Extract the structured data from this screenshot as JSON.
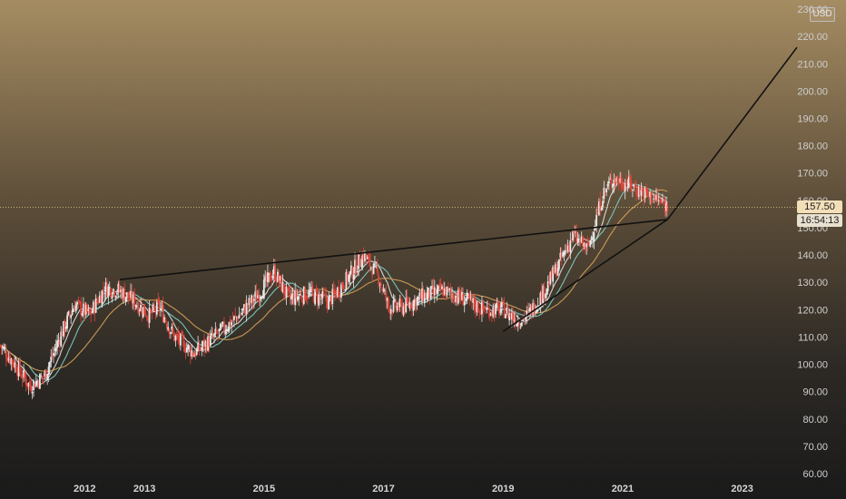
{
  "chart_data": {
    "type": "candlestick",
    "currency": "USD",
    "last_price": "157.50",
    "countdown": "16:54:13",
    "y_axis": {
      "ticks": [
        "60.00",
        "70.00",
        "80.00",
        "90.00",
        "100.00",
        "110.00",
        "120.00",
        "130.00",
        "140.00",
        "150.00",
        "160.00",
        "170.00",
        "180.00",
        "190.00",
        "200.00",
        "210.00",
        "220.00",
        "230.00"
      ],
      "range": [
        60,
        232
      ]
    },
    "x_axis": {
      "ticks": [
        "2012",
        "2013",
        "2015",
        "2017",
        "2019",
        "2021",
        "2023"
      ],
      "range": [
        "2010-08",
        "2023-12"
      ]
    },
    "price_path": [
      [
        "2010-08",
        107
      ],
      [
        "2010-11",
        100
      ],
      [
        "2011-02",
        92
      ],
      [
        "2011-05",
        96
      ],
      [
        "2011-08",
        110
      ],
      [
        "2011-11",
        122
      ],
      [
        "2012-02",
        118
      ],
      [
        "2012-05",
        128
      ],
      [
        "2012-08",
        127
      ],
      [
        "2012-11",
        123
      ],
      [
        "2013-02",
        118
      ],
      [
        "2013-04",
        121
      ],
      [
        "2013-07",
        110
      ],
      [
        "2013-11",
        104
      ],
      [
        "2014-03",
        110
      ],
      [
        "2014-08",
        118
      ],
      [
        "2014-12",
        126
      ],
      [
        "2015-03",
        134
      ],
      [
        "2015-06",
        124
      ],
      [
        "2015-10",
        126
      ],
      [
        "2016-02",
        123
      ],
      [
        "2016-06",
        132
      ],
      [
        "2016-09",
        140
      ],
      [
        "2016-12",
        132
      ],
      [
        "2017-02",
        121
      ],
      [
        "2017-05",
        121
      ],
      [
        "2017-09",
        125
      ],
      [
        "2018-01",
        127
      ],
      [
        "2018-05",
        124
      ],
      [
        "2018-09",
        120
      ],
      [
        "2019-01",
        120
      ],
      [
        "2019-04",
        116
      ],
      [
        "2019-06",
        118
      ],
      [
        "2019-09",
        126
      ],
      [
        "2019-12",
        136
      ],
      [
        "2020-03",
        147
      ],
      [
        "2020-06",
        142
      ],
      [
        "2020-09",
        162
      ],
      [
        "2020-11",
        168
      ],
      [
        "2021-02",
        166
      ],
      [
        "2021-05",
        163
      ],
      [
        "2021-08",
        160
      ],
      [
        "2021-10",
        157.5
      ]
    ],
    "moving_averages": [
      {
        "color": "#e8e8e8",
        "period_months": 3
      },
      {
        "color": "#7fd0c8",
        "period_months": 6
      },
      {
        "color": "#d9a35a",
        "period_months": 12
      }
    ],
    "trendlines": [
      {
        "from": [
          "2012-08",
          131
        ],
        "to": [
          "2021-10",
          153
        ]
      },
      {
        "from": [
          "2019-01",
          112
        ],
        "to": [
          "2021-10",
          153
        ]
      },
      {
        "from": [
          "2021-10",
          153
        ],
        "to": [
          "2023-12",
          216
        ]
      }
    ],
    "candle_colors": {
      "up": "#e8e8e8",
      "down": "#e0443a"
    },
    "grid": false
  }
}
